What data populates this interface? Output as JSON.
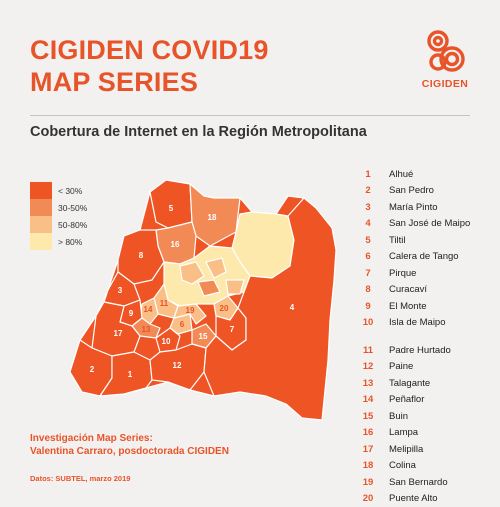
{
  "title": {
    "line1": "CIGIDEN COVID19",
    "line2": "MAP SERIES"
  },
  "logo": {
    "text": "CIGIDEN"
  },
  "subtitle": "Cobertura de Internet en la Región Metropolitana",
  "colors": {
    "accent": "#e8542a",
    "lt30": "#ef5424",
    "r30_50": "#f28a55",
    "r50_80": "#f9bf86",
    "gt80": "#fde9ac"
  },
  "legend": [
    {
      "label": "< 30%"
    },
    {
      "label": "30-50%"
    },
    {
      "label": "50-80%"
    },
    {
      "label": "> 80%"
    }
  ],
  "comunas": [
    {
      "num": "1",
      "name": "Alhué"
    },
    {
      "num": "2",
      "name": "San Pedro"
    },
    {
      "num": "3",
      "name": "María Pinto"
    },
    {
      "num": "4",
      "name": "San José de Maipo"
    },
    {
      "num": "5",
      "name": "Tiltil"
    },
    {
      "num": "6",
      "name": "Calera de Tango"
    },
    {
      "num": "7",
      "name": "Pirque"
    },
    {
      "num": "8",
      "name": "Curacaví"
    },
    {
      "num": "9",
      "name": "El Monte"
    },
    {
      "num": "10",
      "name": "Isla de Maipo"
    },
    {
      "num": "11",
      "name": "Padre Hurtado"
    },
    {
      "num": "12",
      "name": "Paine"
    },
    {
      "num": "13",
      "name": "Talagante"
    },
    {
      "num": "14",
      "name": "Peñaflor"
    },
    {
      "num": "15",
      "name": "Buin"
    },
    {
      "num": "16",
      "name": "Lampa"
    },
    {
      "num": "17",
      "name": "Melipilla"
    },
    {
      "num": "18",
      "name": "Colina"
    },
    {
      "num": "19",
      "name": "San Bernardo"
    },
    {
      "num": "20",
      "name": "Puente Alto"
    }
  ],
  "credit": {
    "line1": "Investigación Map Series:",
    "line2": "Valentina Carraro, posdoctorada CIGIDEN"
  },
  "source": "Datos: SUBTEL, marzo 2019"
}
